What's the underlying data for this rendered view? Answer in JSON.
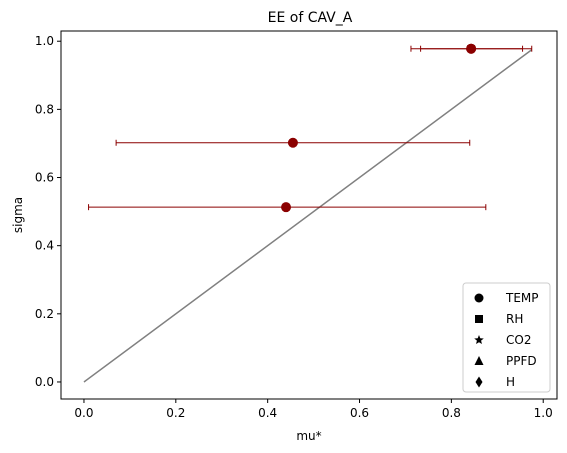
{
  "chart_data": {
    "type": "scatter",
    "title": "EE of CAV_A",
    "xlabel": "mu*",
    "ylabel": "sigma",
    "xlim": [
      -0.05,
      1.03
    ],
    "ylim": [
      -0.05,
      1.03
    ],
    "xticks": [
      0.0,
      0.2,
      0.4,
      0.6,
      0.8,
      1.0
    ],
    "yticks": [
      0.0,
      0.2,
      0.4,
      0.6,
      0.8,
      1.0
    ],
    "tick_labels": {
      "x": [
        "0.0",
        "0.2",
        "0.4",
        "0.6",
        "0.8",
        "1.0"
      ],
      "y": [
        "0.0",
        "0.2",
        "0.4",
        "0.6",
        "0.8",
        "1.0"
      ]
    },
    "grid": false,
    "reference_line": {
      "x": [
        0.0,
        0.975
      ],
      "y": [
        0.0,
        0.975
      ],
      "color": "#808080"
    },
    "points": [
      {
        "x": 0.843,
        "y": 0.978,
        "xerr_low": 0.712,
        "xerr_high": 0.975,
        "color": "#8b0000",
        "marker": "circle"
      },
      {
        "x": 0.843,
        "y": 0.978,
        "xerr_low": 0.733,
        "xerr_high": 0.955,
        "color": "#8b0000",
        "marker": "circle"
      },
      {
        "x": 0.455,
        "y": 0.702,
        "xerr_low": 0.07,
        "xerr_high": 0.84,
        "color": "#8b0000",
        "marker": "circle"
      },
      {
        "x": 0.44,
        "y": 0.513,
        "xerr_low": 0.01,
        "xerr_high": 0.875,
        "color": "#8b0000",
        "marker": "circle"
      }
    ],
    "legend": {
      "placement": "lower-right",
      "entries": [
        {
          "label": "TEMP",
          "marker": "circle"
        },
        {
          "label": "RH",
          "marker": "square"
        },
        {
          "label": "CO2",
          "marker": "star"
        },
        {
          "label": "PPFD",
          "marker": "triangle"
        },
        {
          "label": "H",
          "marker": "diamond"
        }
      ]
    }
  }
}
